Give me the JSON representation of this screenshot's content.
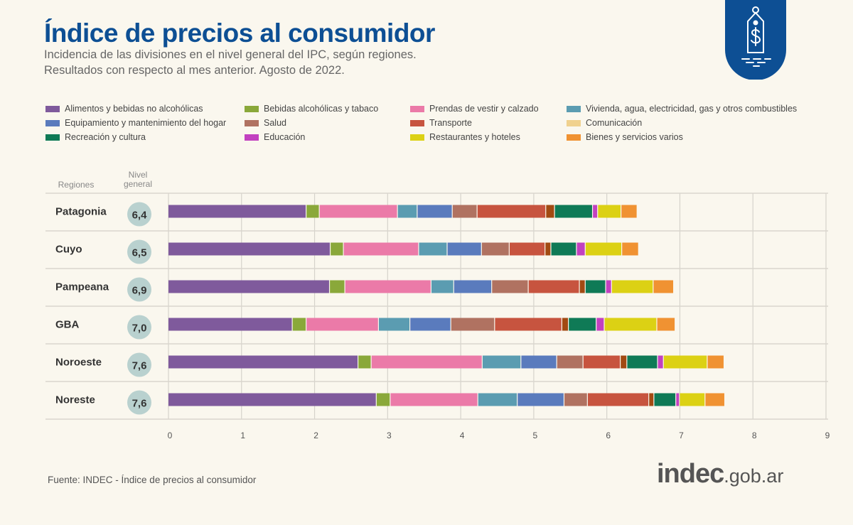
{
  "header": {
    "title": "Índice de precios al consumidor",
    "subtitle_line1": "Incidencia de las divisiones en el nivel general del IPC, según regiones.",
    "subtitle_line2": "Resultados con respecto al mes anterior. Agosto de 2022.",
    "logo_icon": "price-tag-dollar-icon",
    "logo_color": "#0d4f94"
  },
  "footer": {
    "source": "Fuente: INDEC - Índice de precios al consumidor",
    "brand_main": "indec",
    "brand_domain": ".gob.ar"
  },
  "chart_data": {
    "type": "bar",
    "orientation": "horizontal",
    "stacked": true,
    "row_header": "Regiones",
    "total_header": "Nivel general",
    "categories": [
      "Patagonia",
      "Cuyo",
      "Pampeana",
      "GBA",
      "Noroeste",
      "Noreste"
    ],
    "totals": [
      "6,4",
      "6,5",
      "6,9",
      "7,0",
      "7,6",
      "7,6"
    ],
    "xlim": [
      0,
      9
    ],
    "xticks": [
      "0",
      "1",
      "2",
      "3",
      "4",
      "5",
      "6",
      "7",
      "8",
      "9"
    ],
    "grid": true,
    "legend_position": "top",
    "series": [
      {
        "name": "Alimentos y bebidas no alcohólicas",
        "color": "#7f5a9c",
        "values": [
          1.89,
          2.22,
          2.21,
          1.7,
          2.6,
          2.85
        ]
      },
      {
        "name": "Bebidas alcohólicas y tabaco",
        "color": "#8aa83a",
        "values": [
          0.18,
          0.18,
          0.21,
          0.19,
          0.18,
          0.19
        ]
      },
      {
        "name": "Prendas de vestir y calzado",
        "color": "#eb7aa8",
        "values": [
          1.07,
          1.03,
          1.18,
          0.99,
          1.52,
          1.2
        ]
      },
      {
        "name": "Vivienda, agua, electricidad, gas y otros combustibles",
        "color": "#5b9cb1",
        "values": [
          0.27,
          0.39,
          0.31,
          0.43,
          0.53,
          0.54
        ]
      },
      {
        "name": "Equipamiento y mantenimiento del hogar",
        "color": "#5a7bbd",
        "values": [
          0.48,
          0.47,
          0.52,
          0.56,
          0.49,
          0.64
        ]
      },
      {
        "name": "Salud",
        "color": "#b07261",
        "values": [
          0.34,
          0.38,
          0.5,
          0.6,
          0.36,
          0.32
        ]
      },
      {
        "name": "Transporte",
        "color": "#c7543f",
        "values": [
          0.94,
          0.49,
          0.7,
          0.92,
          0.51,
          0.84
        ]
      },
      {
        "name": "Comunicación",
        "color": "#a24a12",
        "legend_color": "#f0d18e",
        "values": [
          0.12,
          0.08,
          0.08,
          0.09,
          0.09,
          0.07
        ]
      },
      {
        "name": "Recreación y cultura",
        "color": "#0f7a56",
        "values": [
          0.52,
          0.35,
          0.28,
          0.38,
          0.42,
          0.3
        ]
      },
      {
        "name": "Educación",
        "color": "#c241c0",
        "values": [
          0.07,
          0.12,
          0.08,
          0.11,
          0.08,
          0.05
        ]
      },
      {
        "name": "Restaurantes y hoteles",
        "color": "#dcd114",
        "values": [
          0.32,
          0.5,
          0.57,
          0.72,
          0.6,
          0.35
        ]
      },
      {
        "name": "Bienes y servicios varios",
        "color": "#f09232",
        "values": [
          0.22,
          0.23,
          0.28,
          0.25,
          0.23,
          0.27
        ]
      }
    ]
  }
}
